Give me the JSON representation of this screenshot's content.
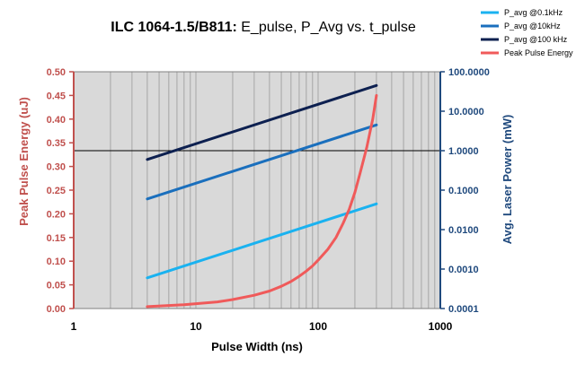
{
  "chart_data": {
    "type": "line",
    "title_bold": "ILC 1064-1.5/B811:",
    "title_rest": " E_pulse, P_Avg vs. t_pulse",
    "xlabel": "Pulse Width (ns)",
    "ylabel_left": "Peak Pulse Energy (uJ)",
    "ylabel_right": "Avg. Laser Power (mW)",
    "x_scale": "log",
    "xlim": [
      1,
      1000
    ],
    "x_ticks": [
      1,
      10,
      100,
      1000
    ],
    "x_tick_labels": [
      "1",
      "10",
      "100",
      "1000"
    ],
    "ylim_left": [
      0,
      0.5
    ],
    "y_left_ticks": [
      0,
      0.05,
      0.1,
      0.15,
      0.2,
      0.25,
      0.3,
      0.35,
      0.4,
      0.45,
      0.5
    ],
    "y_left_tick_labels": [
      "0.00",
      "0.05",
      "0.10",
      "0.15",
      "0.20",
      "0.25",
      "0.30",
      "0.35",
      "0.40",
      "0.45",
      "0.50"
    ],
    "y_right_scale": "log",
    "ylim_right": [
      0.0001,
      100
    ],
    "y_right_ticks": [
      0.0001,
      0.001,
      0.01,
      0.1,
      1,
      10,
      100
    ],
    "y_right_tick_labels": [
      "0.0001",
      "0.0010",
      "0.0100",
      "0.1000",
      "1.0000",
      "10.0000",
      "100.0000"
    ],
    "grid": true,
    "legend_position": "top-right",
    "colors": {
      "plot_bg": "#d9d9d9",
      "grid": "#a6a6a6",
      "left_axis": "#c0504d",
      "right_axis": "#1f497d"
    },
    "series": [
      {
        "name": "P_avg @0.1kHz",
        "axis": "right",
        "color": "#1ab2f0",
        "x": [
          4,
          300
        ],
        "y": [
          0.0006,
          0.045
        ]
      },
      {
        "name": "P_avg @10kHz",
        "axis": "right",
        "color": "#1a6fbd",
        "x": [
          4,
          300
        ],
        "y": [
          0.06,
          4.5
        ]
      },
      {
        "name": "P_avg @100 kHz",
        "axis": "right",
        "color": "#0d2050",
        "x": [
          4,
          300
        ],
        "y": [
          0.6,
          45
        ]
      },
      {
        "name": "Peak Pulse Energy",
        "axis": "left",
        "color": "#f05a5a",
        "x": [
          4,
          8,
          15,
          20,
          30,
          40,
          50,
          60,
          70,
          80,
          90,
          100,
          120,
          140,
          160,
          180,
          200,
          220,
          250,
          280,
          300
        ],
        "y": [
          0.004,
          0.008,
          0.014,
          0.019,
          0.028,
          0.037,
          0.047,
          0.057,
          0.068,
          0.079,
          0.09,
          0.102,
          0.125,
          0.15,
          0.18,
          0.21,
          0.245,
          0.285,
          0.34,
          0.4,
          0.45
        ]
      }
    ]
  }
}
